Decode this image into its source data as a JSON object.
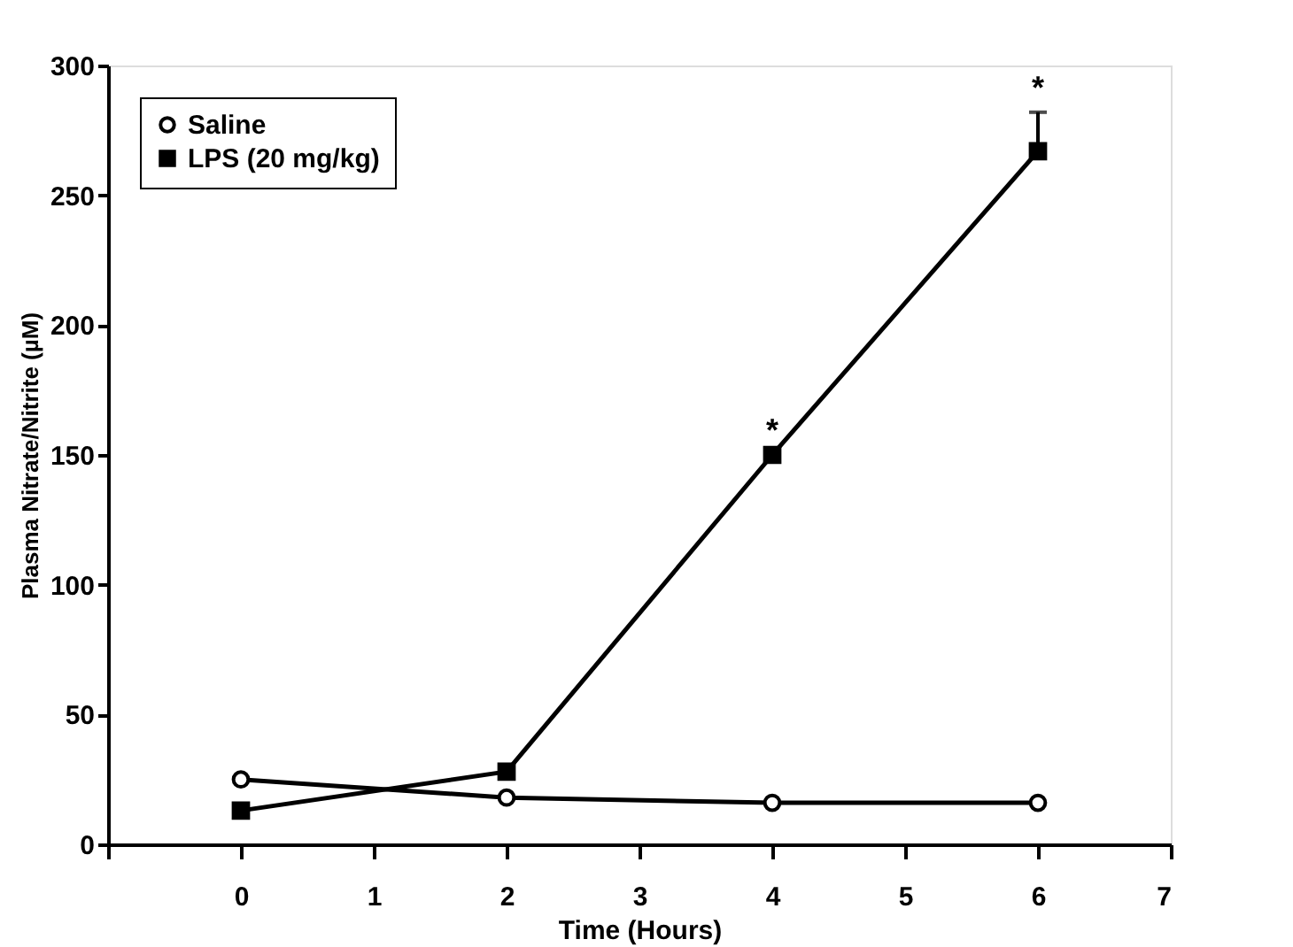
{
  "chart_data": {
    "type": "line",
    "xlabel": "Time (Hours)",
    "ylabel": "Plasma Nitrate/Nitrite (µM)",
    "x": [
      0,
      2,
      4,
      6
    ],
    "series": [
      {
        "name": "Saline",
        "color": "#000000",
        "marker": "circle",
        "values": [
          25,
          18,
          16,
          16
        ]
      },
      {
        "name": "LPS (20 mg/kg)",
        "color": "#000000",
        "marker": "square",
        "values": [
          13,
          28,
          150,
          267
        ],
        "errors": [
          null,
          null,
          null,
          [
            267,
            282
          ]
        ]
      }
    ],
    "xlim": [
      -1,
      7
    ],
    "xticks": [
      {
        "value": -1,
        "label": null
      },
      0,
      1,
      2,
      3,
      4,
      5,
      6,
      7
    ],
    "ylim": [
      0,
      300
    ],
    "yticks": [
      0,
      50,
      100,
      150,
      200,
      250,
      300
    ],
    "annotations": [
      {
        "text": "*",
        "x": 4,
        "y": 150
      },
      {
        "text": "*",
        "x": 6,
        "y": 267
      }
    ],
    "grid": false,
    "legend": "top left",
    "line_style": "solid"
  }
}
